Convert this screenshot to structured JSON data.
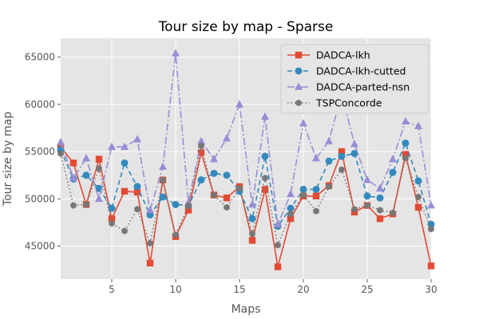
{
  "chart_data": {
    "type": "line",
    "title": "Tour size by map - Sparse",
    "xlabel": "Maps",
    "ylabel": "Tour size by map",
    "xlim": [
      1,
      30
    ],
    "ylim": [
      41500,
      67000
    ],
    "xticks": [
      5,
      10,
      15,
      20,
      25,
      30
    ],
    "yticks": [
      45000,
      50000,
      55000,
      60000,
      65000
    ],
    "grid": true,
    "legend_position": "top-right",
    "x": [
      1,
      2,
      3,
      4,
      5,
      6,
      7,
      8,
      9,
      10,
      11,
      12,
      13,
      14,
      15,
      16,
      17,
      18,
      19,
      20,
      21,
      22,
      23,
      24,
      25,
      26,
      27,
      28,
      29,
      30
    ],
    "series": [
      {
        "name": "DADCA-lkh",
        "color": "#E24A33",
        "line_style": "solid",
        "marker": "square",
        "values": [
          55500,
          53800,
          49400,
          54200,
          47900,
          50800,
          50700,
          43200,
          52000,
          46000,
          48800,
          54900,
          50400,
          50100,
          51300,
          45600,
          51000,
          42800,
          47900,
          50300,
          50300,
          51400,
          55000,
          48600,
          49300,
          47900,
          48400,
          54700,
          49100,
          42900
        ]
      },
      {
        "name": "DADCA-lkh-cutted",
        "color": "#348ABD",
        "line_style": "dashed",
        "marker": "circle",
        "values": [
          55200,
          52100,
          52500,
          51100,
          49000,
          53800,
          51300,
          48300,
          50200,
          49400,
          49300,
          52000,
          52700,
          52500,
          50800,
          47900,
          54500,
          47100,
          49000,
          51000,
          51000,
          54000,
          54500,
          54800,
          50300,
          50100,
          52800,
          55900,
          51900,
          47300
        ]
      },
      {
        "name": "DADCA-parted-nsn",
        "color": "#988ED5",
        "line_style": "dashdot",
        "marker": "triangle",
        "values": [
          56000,
          52200,
          54300,
          50000,
          55500,
          55500,
          56300,
          48800,
          53400,
          65400,
          49600,
          56100,
          54200,
          56400,
          60000,
          49400,
          58700,
          47300,
          50500,
          58000,
          54300,
          56100,
          61100,
          55800,
          52000,
          51100,
          54200,
          58200,
          57700,
          49300
        ]
      },
      {
        "name": "TSPConcorde",
        "color": "#777777",
        "line_style": "dotted",
        "marker": "hexagon",
        "values": [
          54800,
          49300,
          49400,
          53200,
          47400,
          46600,
          48900,
          45300,
          52000,
          46200,
          49300,
          55600,
          50400,
          49100,
          51100,
          46300,
          52200,
          45100,
          48400,
          50400,
          48700,
          51300,
          53100,
          48900,
          49300,
          48800,
          48500,
          54300,
          50200,
          46800
        ]
      }
    ]
  }
}
